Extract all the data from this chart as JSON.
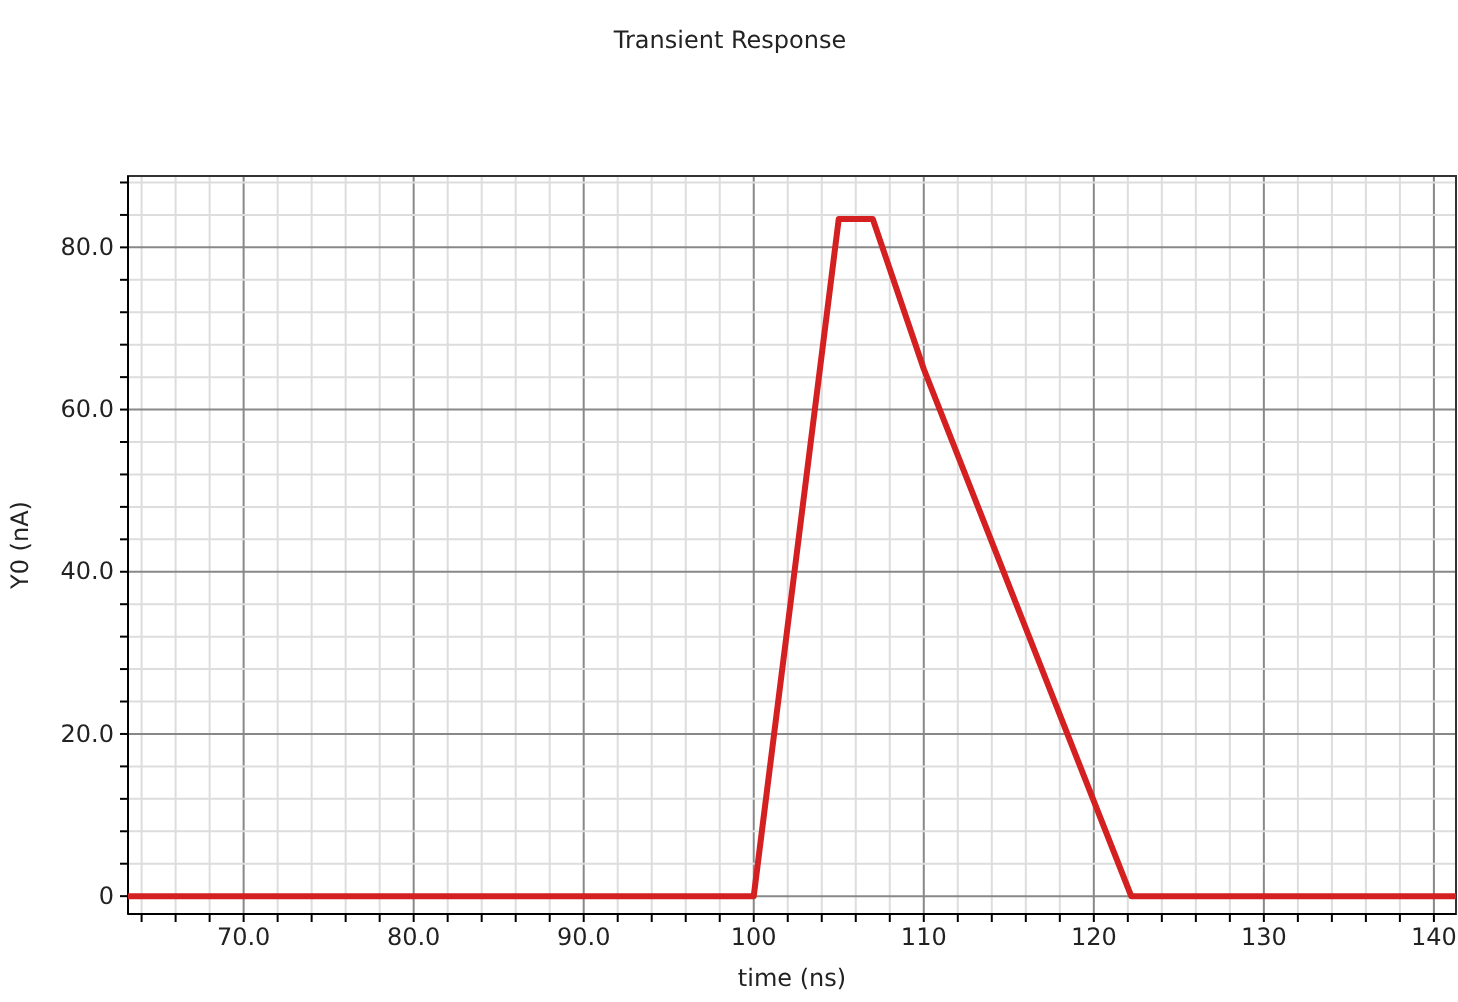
{
  "chart_data": {
    "type": "line",
    "title": "Transient Response",
    "xlabel": "time (ns)",
    "ylabel": "Y0 (nA)",
    "x": [
      63.2,
      100,
      105,
      107,
      110,
      122.2,
      141.3
    ],
    "series": [
      {
        "color": "#d42020",
        "values": [
          0,
          0,
          83.5,
          83.5,
          65,
          0,
          0
        ]
      }
    ],
    "xlim": [
      63.2,
      141.3
    ],
    "ylim": [
      -2.2,
      88.8
    ],
    "xticks": [
      {
        "value": 64,
        "label": null
      },
      {
        "value": 66,
        "label": null
      },
      {
        "value": 68,
        "label": null
      },
      {
        "value": 70,
        "label": "70.0"
      },
      {
        "value": 72,
        "label": null
      },
      {
        "value": 74,
        "label": null
      },
      {
        "value": 76,
        "label": null
      },
      {
        "value": 78,
        "label": null
      },
      {
        "value": 80,
        "label": "80.0"
      },
      {
        "value": 82,
        "label": null
      },
      {
        "value": 84,
        "label": null
      },
      {
        "value": 86,
        "label": null
      },
      {
        "value": 88,
        "label": null
      },
      {
        "value": 90,
        "label": "90.0"
      },
      {
        "value": 92,
        "label": null
      },
      {
        "value": 94,
        "label": null
      },
      {
        "value": 96,
        "label": null
      },
      {
        "value": 98,
        "label": null
      },
      100,
      {
        "value": 102,
        "label": null
      },
      {
        "value": 104,
        "label": null
      },
      {
        "value": 106,
        "label": null
      },
      {
        "value": 108,
        "label": null
      },
      110,
      {
        "value": 112,
        "label": null
      },
      {
        "value": 114,
        "label": null
      },
      {
        "value": 116,
        "label": null
      },
      {
        "value": 118,
        "label": null
      },
      120,
      {
        "value": 122,
        "label": null
      },
      {
        "value": 124,
        "label": null
      },
      {
        "value": 126,
        "label": null
      },
      {
        "value": 128,
        "label": null
      },
      130,
      {
        "value": 132,
        "label": null
      },
      {
        "value": 134,
        "label": null
      },
      {
        "value": 136,
        "label": null
      },
      {
        "value": 138,
        "label": null
      },
      140
    ],
    "yticks": [
      0,
      {
        "value": 4,
        "label": null
      },
      {
        "value": 8,
        "label": null
      },
      {
        "value": 12,
        "label": null
      },
      {
        "value": 16,
        "label": null
      },
      {
        "value": 20,
        "label": "20.0"
      },
      {
        "value": 24,
        "label": null
      },
      {
        "value": 28,
        "label": null
      },
      {
        "value": 32,
        "label": null
      },
      {
        "value": 36,
        "label": null
      },
      {
        "value": 40,
        "label": "40.0"
      },
      {
        "value": 44,
        "label": null
      },
      {
        "value": 48,
        "label": null
      },
      {
        "value": 52,
        "label": null
      },
      {
        "value": 56,
        "label": null
      },
      {
        "value": 60,
        "label": "60.0"
      },
      {
        "value": 64,
        "label": null
      },
      {
        "value": 68,
        "label": null
      },
      {
        "value": 72,
        "label": null
      },
      {
        "value": 76,
        "label": null
      },
      {
        "value": 80,
        "label": "80.0"
      },
      {
        "value": 84,
        "label": null
      },
      {
        "value": 88,
        "label": null
      }
    ],
    "grid": true,
    "marker": "none",
    "line_style": "solid"
  }
}
